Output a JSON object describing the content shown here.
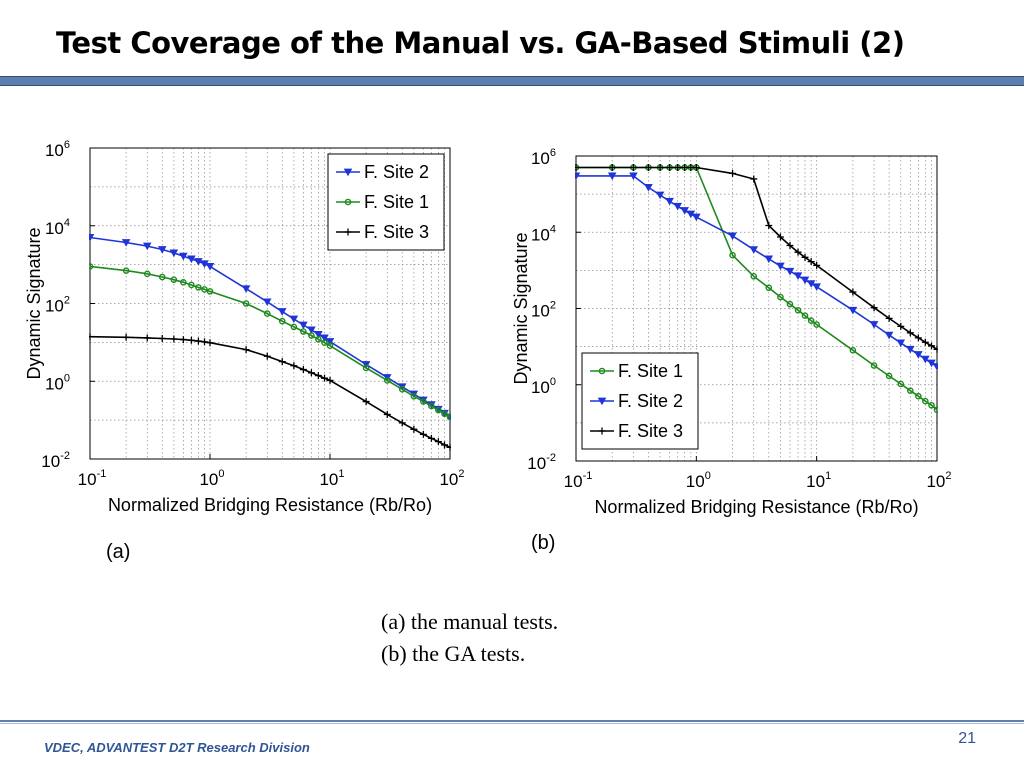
{
  "slide": {
    "title": "Test Coverage of the Manual vs. GA-Based Stimuli (2)",
    "panel_a_label": "(a)",
    "panel_b_label": "(b)",
    "caption_lines": [
      "(a) the manual tests.",
      "(b) the GA tests."
    ],
    "footer": "VDEC, ADVANTEST D2T Research Division",
    "page_number": "21"
  },
  "chart_data": [
    {
      "type": "line",
      "xscale": "log",
      "yscale": "log",
      "xlim": [
        0.1,
        100
      ],
      "ylim": [
        0.01,
        1000000
      ],
      "xlabel": "Normalized Bridging Resistance (Rb/Ro)",
      "ylabel": "Dynamic Signature",
      "x_ticks": [
        {
          "value": 0.1,
          "mantissa": "10",
          "exponent": "-1"
        },
        {
          "value": 1,
          "mantissa": "10",
          "exponent": "0"
        },
        {
          "value": 10,
          "mantissa": "10",
          "exponent": "1"
        },
        {
          "value": 100,
          "mantissa": "10",
          "exponent": "2"
        }
      ],
      "y_ticks": [
        {
          "value": 0.01,
          "mantissa": "10",
          "exponent": "-2"
        },
        {
          "value": 1,
          "mantissa": "10",
          "exponent": "0"
        },
        {
          "value": 100,
          "mantissa": "10",
          "exponent": "2"
        },
        {
          "value": 10000,
          "mantissa": "10",
          "exponent": "4"
        },
        {
          "value": 1000000,
          "mantissa": "10",
          "exponent": "6"
        }
      ],
      "grid": true,
      "legend_position": "top-right",
      "series": [
        {
          "name": "F. Site 2",
          "color": "#1f35d8",
          "marker": "triangle-down",
          "x": [
            0.1,
            0.2,
            0.3,
            0.4,
            0.5,
            0.6,
            0.7,
            0.8,
            0.9,
            1,
            2,
            3,
            4,
            5,
            6,
            7,
            8,
            9,
            10,
            20,
            30,
            40,
            50,
            60,
            70,
            80,
            90,
            100
          ],
          "y": [
            5000,
            3700,
            3000,
            2450,
            2000,
            1650,
            1400,
            1200,
            1050,
            900,
            240,
            110,
            62,
            40,
            28,
            21,
            16,
            13,
            10.5,
            2.7,
            1.25,
            0.72,
            0.47,
            0.33,
            0.25,
            0.19,
            0.15,
            0.12
          ]
        },
        {
          "name": "F. Site 1",
          "color": "#1e8a1e",
          "marker": "circle",
          "x": [
            0.1,
            0.2,
            0.3,
            0.4,
            0.5,
            0.6,
            0.7,
            0.8,
            0.9,
            1,
            2,
            3,
            4,
            5,
            6,
            7,
            8,
            9,
            10,
            20,
            30,
            40,
            50,
            60,
            70,
            80,
            90,
            100
          ],
          "y": [
            900,
            700,
            580,
            480,
            410,
            350,
            300,
            260,
            230,
            205,
            100,
            55,
            35,
            25,
            19,
            15,
            12,
            9.8,
            8.2,
            2.2,
            1.05,
            0.62,
            0.41,
            0.3,
            0.23,
            0.18,
            0.145,
            0.12
          ]
        },
        {
          "name": "F. Site 3",
          "color": "#000000",
          "marker": "plus",
          "x": [
            0.1,
            0.2,
            0.3,
            0.4,
            0.5,
            0.6,
            0.7,
            0.8,
            0.9,
            1,
            2,
            3,
            4,
            5,
            6,
            7,
            8,
            9,
            10,
            20,
            30,
            40,
            50,
            60,
            70,
            80,
            90,
            100
          ],
          "y": [
            14,
            13.5,
            13,
            12.6,
            12.2,
            11.8,
            11.3,
            10.8,
            10.3,
            9.8,
            6.5,
            4.4,
            3.2,
            2.5,
            2.0,
            1.65,
            1.4,
            1.2,
            1.05,
            0.3,
            0.14,
            0.085,
            0.058,
            0.043,
            0.034,
            0.028,
            0.023,
            0.02
          ]
        }
      ]
    },
    {
      "type": "line",
      "xscale": "log",
      "yscale": "log",
      "xlim": [
        0.1,
        100
      ],
      "ylim": [
        0.01,
        1000000
      ],
      "xlabel": "Normalized Bridging Resistance (Rb/Ro)",
      "ylabel": "Dynamic Signature",
      "x_ticks": [
        {
          "value": 0.1,
          "mantissa": "10",
          "exponent": "-1"
        },
        {
          "value": 1,
          "mantissa": "10",
          "exponent": "0"
        },
        {
          "value": 10,
          "mantissa": "10",
          "exponent": "1"
        },
        {
          "value": 100,
          "mantissa": "10",
          "exponent": "2"
        }
      ],
      "y_ticks": [
        {
          "value": 0.01,
          "mantissa": "10",
          "exponent": "-2"
        },
        {
          "value": 1,
          "mantissa": "10",
          "exponent": "0"
        },
        {
          "value": 100,
          "mantissa": "10",
          "exponent": "2"
        },
        {
          "value": 10000,
          "mantissa": "10",
          "exponent": "4"
        },
        {
          "value": 1000000,
          "mantissa": "10",
          "exponent": "6"
        }
      ],
      "grid": true,
      "legend_position": "bottom-left",
      "series": [
        {
          "name": "F. Site 1",
          "color": "#1e8a1e",
          "marker": "circle",
          "x": [
            0.1,
            0.2,
            0.3,
            0.4,
            0.5,
            0.6,
            0.7,
            0.8,
            0.9,
            1,
            2,
            3,
            4,
            5,
            6,
            7,
            8,
            9,
            10,
            20,
            30,
            40,
            50,
            60,
            70,
            80,
            90,
            100
          ],
          "y": [
            500000,
            500000,
            500000,
            500000,
            500000,
            500000,
            500000,
            500000,
            500000,
            500000,
            2500,
            700,
            350,
            200,
            130,
            90,
            65,
            48,
            38,
            8,
            3.2,
            1.7,
            1.05,
            0.7,
            0.5,
            0.37,
            0.29,
            0.22
          ]
        },
        {
          "name": "F. Site 2",
          "color": "#1f35d8",
          "marker": "triangle-down",
          "x": [
            0.1,
            0.2,
            0.3,
            0.4,
            0.5,
            0.6,
            0.7,
            0.8,
            0.9,
            1,
            2,
            3,
            4,
            5,
            6,
            7,
            8,
            9,
            10,
            20,
            30,
            40,
            50,
            60,
            70,
            80,
            90,
            100
          ],
          "y": [
            300000,
            300000,
            300000,
            150000,
            95000,
            65000,
            48000,
            37000,
            30000,
            25000,
            8000,
            3500,
            2000,
            1300,
            950,
            720,
            560,
            450,
            370,
            90,
            38,
            20,
            12.5,
            8.5,
            6.2,
            4.7,
            3.7,
            3.0
          ]
        },
        {
          "name": "F. Site 3",
          "color": "#000000",
          "marker": "plus",
          "x": [
            0.1,
            0.2,
            0.3,
            0.4,
            0.5,
            0.6,
            0.7,
            0.8,
            0.9,
            1,
            2,
            3,
            4,
            5,
            6,
            7,
            8,
            9,
            10,
            20,
            30,
            40,
            50,
            60,
            70,
            80,
            90,
            100
          ],
          "y": [
            500000,
            500000,
            500000,
            500000,
            500000,
            500000,
            500000,
            500000,
            500000,
            500000,
            350000,
            250000,
            15000,
            7500,
            4500,
            3000,
            2200,
            1700,
            1350,
            270,
            105,
            55,
            34,
            23,
            17,
            13,
            10.5,
            8.5
          ]
        }
      ]
    }
  ]
}
